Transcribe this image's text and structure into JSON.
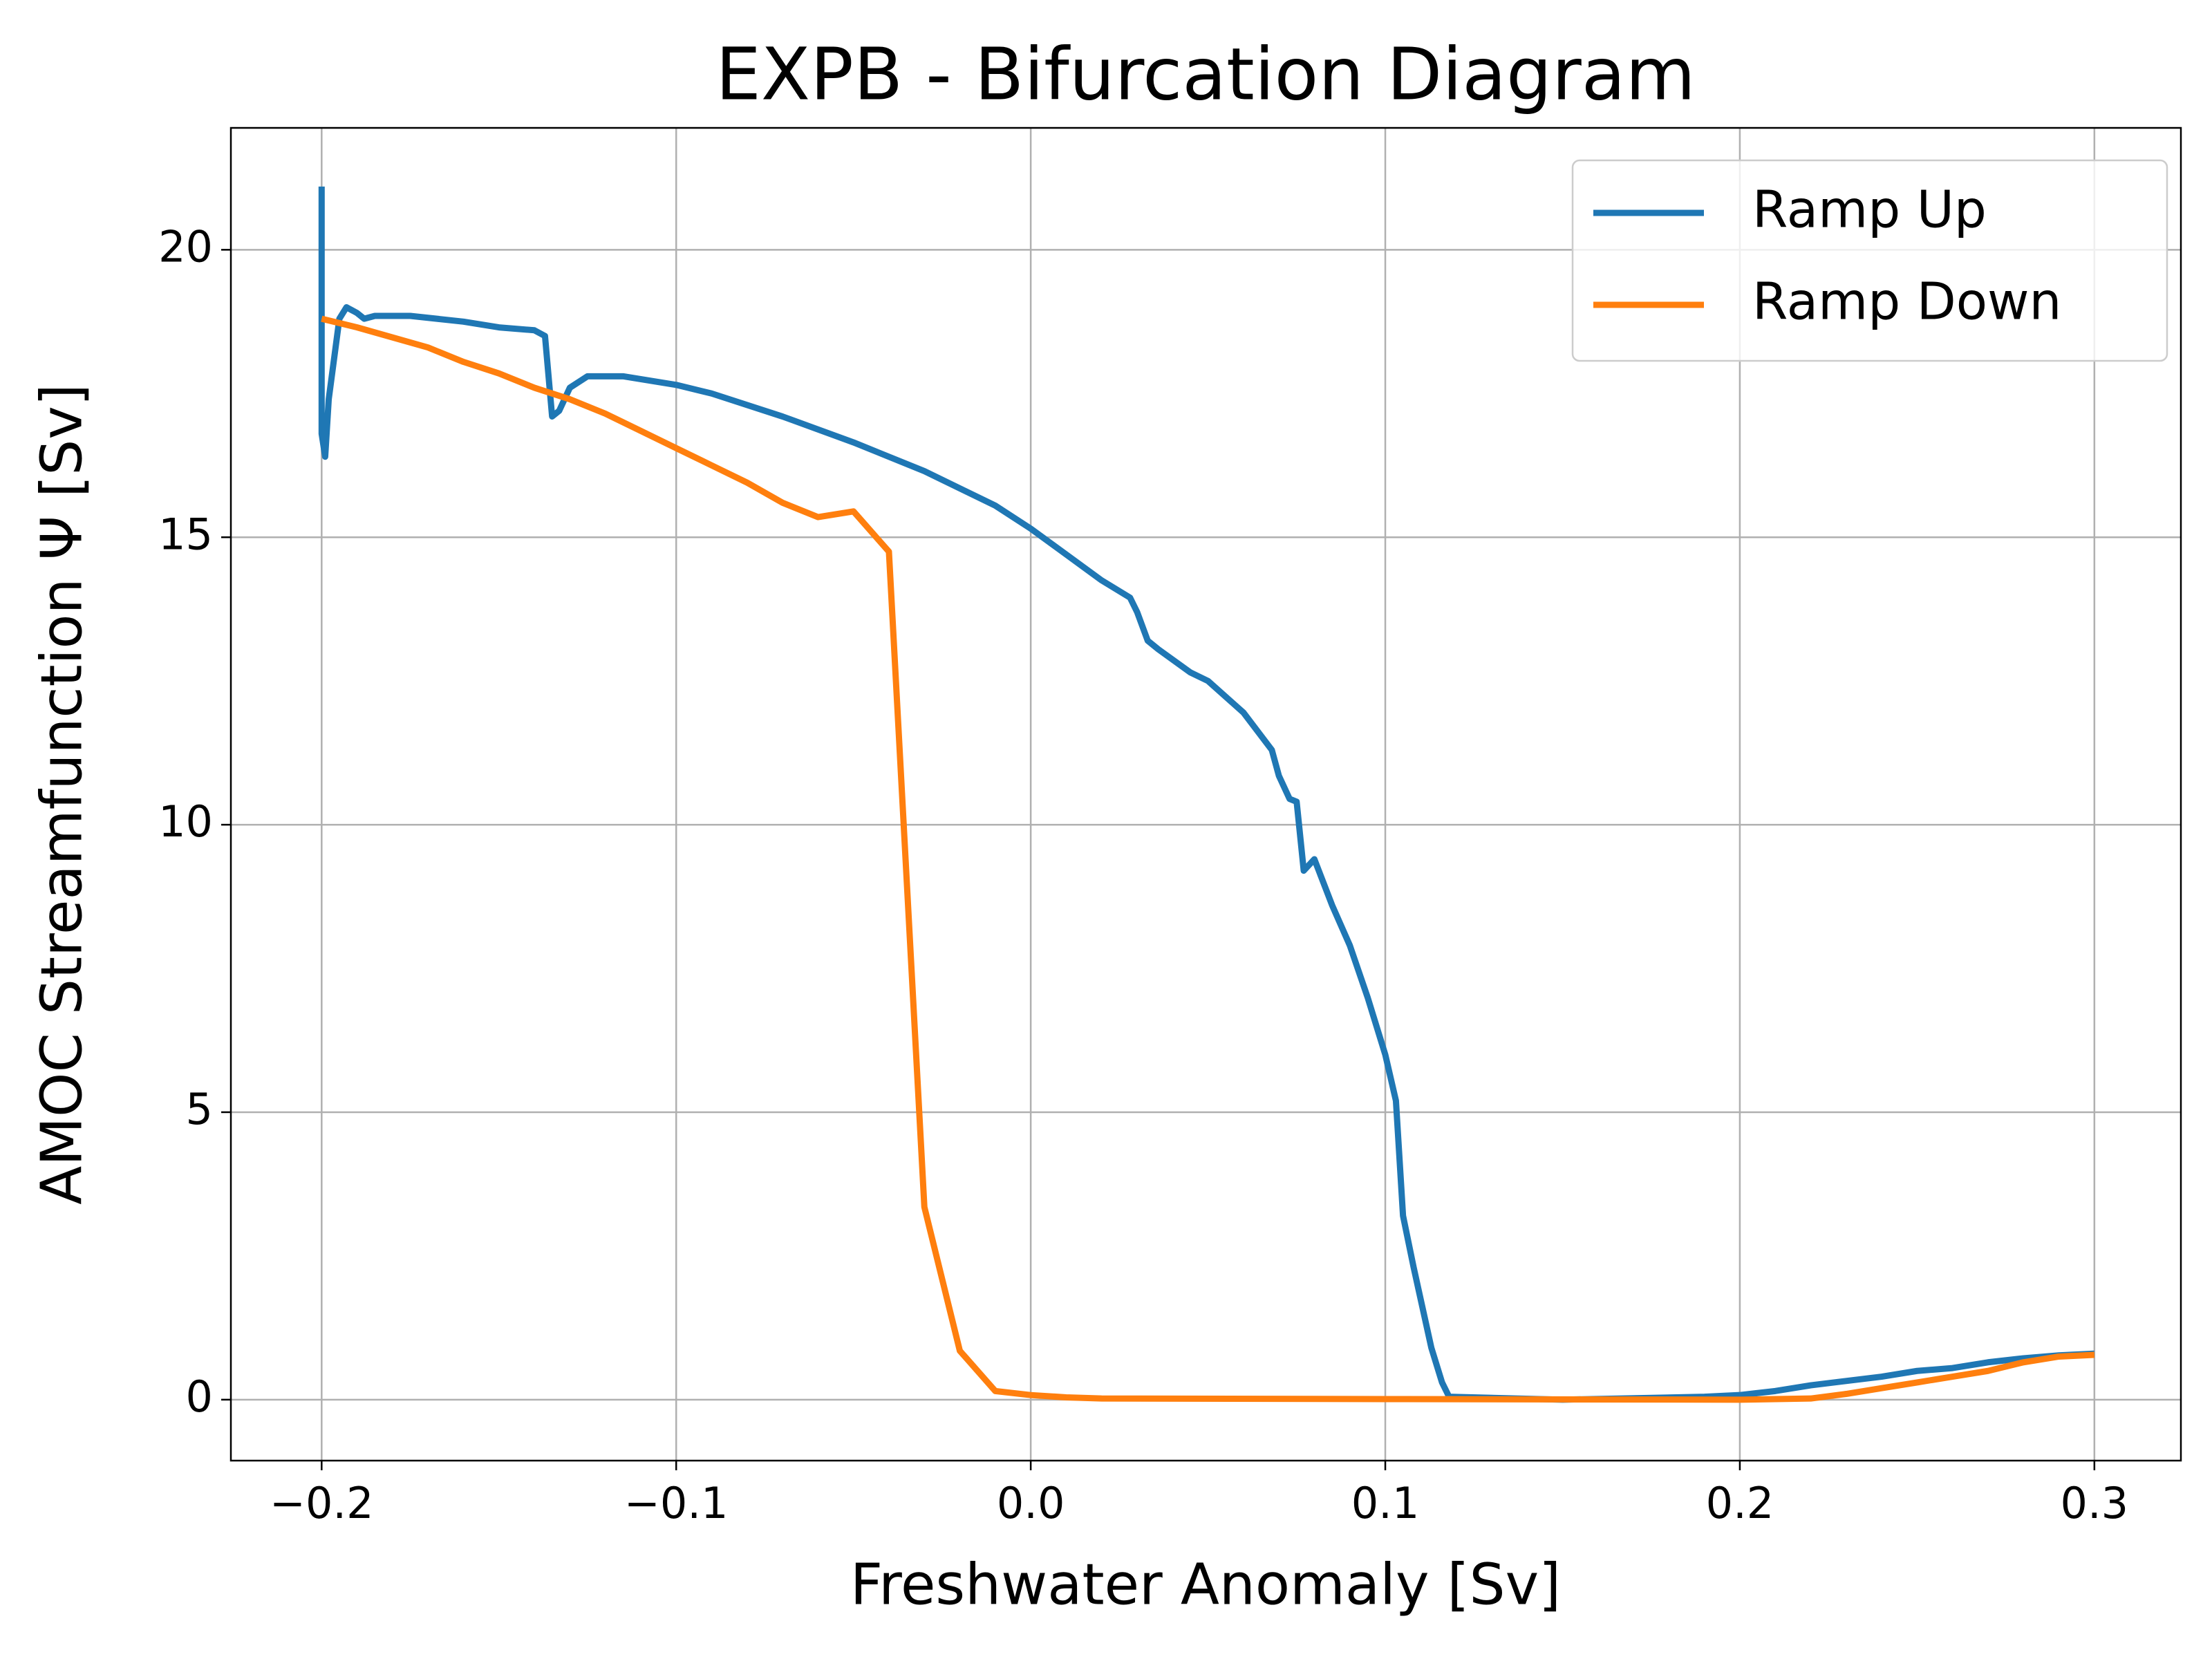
{
  "chart_data": {
    "type": "line",
    "title": "EXPB - Bifurcation Diagram",
    "x_label": "Freshwater Anomaly [Sv]",
    "y_label": "AMOC Streamfunction Ψ [Sv]",
    "xlim": [
      -0.2256,
      0.3244
    ],
    "ylim": [
      -1.06,
      22.12
    ],
    "xticks": [
      {
        "value": -0.2,
        "label": "−0.2"
      },
      {
        "value": -0.1,
        "label": "−0.1"
      },
      {
        "value": 0.0,
        "label": "0.0"
      },
      0.1,
      0.2,
      0.3
    ],
    "yticks": [
      0,
      5,
      10,
      15,
      20
    ],
    "grid": true,
    "legend_position": "upper right",
    "series": [
      {
        "name": "Ramp Up",
        "color": "#1f77b4",
        "x": [
          -0.2,
          -0.2,
          -0.199,
          -0.198,
          -0.195,
          -0.193,
          -0.19,
          -0.188,
          -0.185,
          -0.175,
          -0.16,
          -0.15,
          -0.14,
          -0.137,
          -0.135,
          -0.133,
          -0.13,
          -0.125,
          -0.115,
          -0.1,
          -0.09,
          -0.07,
          -0.05,
          -0.03,
          -0.01,
          0.0,
          0.01,
          0.02,
          0.028,
          0.03,
          0.033,
          0.036,
          0.045,
          0.05,
          0.06,
          0.068,
          0.07,
          0.073,
          0.075,
          0.077,
          0.08,
          0.085,
          0.09,
          0.095,
          0.1,
          0.103,
          0.105,
          0.108,
          0.113,
          0.116,
          0.118,
          0.15,
          0.19,
          0.2,
          0.21,
          0.22,
          0.24,
          0.25,
          0.26,
          0.27,
          0.28,
          0.29,
          0.3
        ],
        "values": [
          21.1,
          16.8,
          16.4,
          17.4,
          18.8,
          19.0,
          18.9,
          18.8,
          18.85,
          18.85,
          18.75,
          18.65,
          18.6,
          18.5,
          17.1,
          17.2,
          17.6,
          17.8,
          17.8,
          17.65,
          17.5,
          17.1,
          16.65,
          16.15,
          15.55,
          15.15,
          14.7,
          14.25,
          13.95,
          13.7,
          13.2,
          13.05,
          12.65,
          12.5,
          11.95,
          11.3,
          10.85,
          10.45,
          10.4,
          9.2,
          9.4,
          8.6,
          7.9,
          7.0,
          6.0,
          5.2,
          3.2,
          2.3,
          0.9,
          0.3,
          0.05,
          0.0,
          0.05,
          0.08,
          0.15,
          0.25,
          0.4,
          0.5,
          0.55,
          0.65,
          0.72,
          0.77,
          0.8
        ]
      },
      {
        "name": "Ramp Down",
        "color": "#ff7f0e",
        "x": [
          -0.2,
          -0.19,
          -0.17,
          -0.16,
          -0.15,
          -0.14,
          -0.13,
          -0.12,
          -0.11,
          -0.1,
          -0.09,
          -0.08,
          -0.07,
          -0.06,
          -0.05,
          -0.04,
          -0.03,
          -0.02,
          -0.01,
          0.0,
          0.01,
          0.02,
          0.1,
          0.2,
          0.22,
          0.23,
          0.24,
          0.25,
          0.26,
          0.27,
          0.28,
          0.29,
          0.3
        ],
        "values": [
          18.8,
          18.65,
          18.3,
          18.05,
          17.85,
          17.6,
          17.4,
          17.15,
          16.85,
          16.55,
          16.25,
          15.95,
          15.6,
          15.35,
          15.45,
          14.75,
          3.35,
          0.85,
          0.15,
          0.08,
          0.04,
          0.02,
          0.01,
          0.0,
          0.02,
          0.1,
          0.2,
          0.3,
          0.4,
          0.5,
          0.65,
          0.75,
          0.78
        ]
      }
    ]
  }
}
